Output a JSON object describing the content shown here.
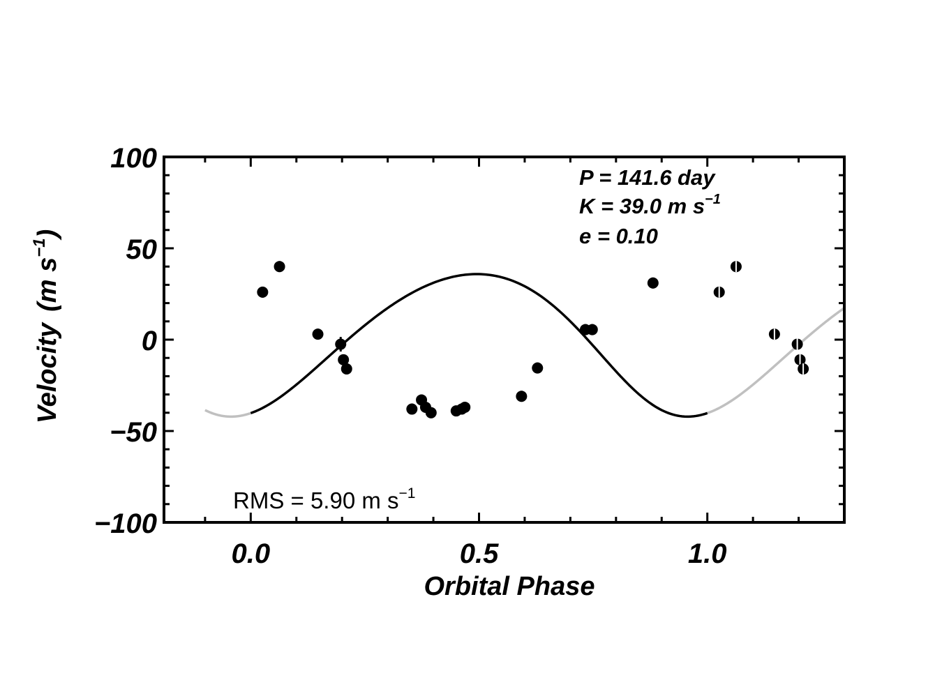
{
  "chart_data": {
    "type": "scatter",
    "xlabel": "Orbital Phase",
    "ylabel": "Velocity",
    "ylabel_units": "(m s",
    "ylabel_exp": "−1",
    "ylabel_close": ")",
    "xlim": [
      -0.19,
      1.3
    ],
    "ylim": [
      -100,
      100
    ],
    "x_ticks": [
      {
        "value": 0.0,
        "label": "0.0"
      },
      {
        "value": 0.5,
        "label": "0.5"
      },
      {
        "value": 1.0,
        "label": "1.0"
      }
    ],
    "y_ticks": [
      {
        "value": 100,
        "label": "100"
      },
      {
        "value": 50,
        "label": "50"
      },
      {
        "value": 0,
        "label": "0"
      },
      {
        "value": -50,
        "label": "−50"
      },
      {
        "value": -100,
        "label": "−100"
      }
    ],
    "annotations": {
      "period": "P = 141.6 day",
      "semi_amplitude": "K = 39.0 m s",
      "semi_amplitude_exp": "−1",
      "eccentricity": "e = 0.10",
      "rms": "RMS = 5.90 m s",
      "rms_exp": "−1"
    },
    "model": {
      "type": "keplerian",
      "P_days": 141.6,
      "K": 39.0,
      "e": 0.1,
      "x_range_solid": [
        0.0,
        1.0
      ],
      "x_range_extended": [
        -0.1,
        1.3
      ],
      "solid_color": "#000000",
      "extended_color": "#c0c0c0"
    },
    "points": [
      {
        "x": 0.026,
        "y": 26,
        "err": 3
      },
      {
        "x": 0.063,
        "y": 40,
        "err": 3
      },
      {
        "x": 0.147,
        "y": 3,
        "err": 3
      },
      {
        "x": 0.197,
        "y": -2.5,
        "err": 4
      },
      {
        "x": 0.203,
        "y": -11,
        "err": 3
      },
      {
        "x": 0.21,
        "y": -16,
        "err": 3
      },
      {
        "x": 0.353,
        "y": -38,
        "err": 3
      },
      {
        "x": 0.374,
        "y": -33,
        "err": 3
      },
      {
        "x": 0.383,
        "y": -37,
        "err": 3
      },
      {
        "x": 0.395,
        "y": -40,
        "err": 3
      },
      {
        "x": 0.45,
        "y": -39,
        "err": 2
      },
      {
        "x": 0.462,
        "y": -38,
        "err": 2
      },
      {
        "x": 0.469,
        "y": -37,
        "err": 3
      },
      {
        "x": 0.593,
        "y": -31,
        "err": 3
      },
      {
        "x": 0.628,
        "y": -15.5,
        "err": 3
      },
      {
        "x": 0.733,
        "y": 5.5,
        "err": 3
      },
      {
        "x": 0.748,
        "y": 5.5,
        "err": 3
      },
      {
        "x": 0.881,
        "y": 31,
        "err": 3
      }
    ],
    "repeat_shift": 1.0,
    "repeat_x_max": 1.3,
    "grid": false,
    "legend": "none"
  }
}
